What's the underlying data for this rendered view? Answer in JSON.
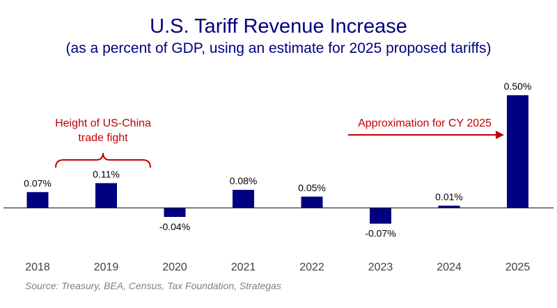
{
  "chart_data": {
    "type": "bar",
    "title": "U.S. Tariff Revenue Increase",
    "subtitle": "(as a percent of GDP, using an estimate for 2025 proposed tariffs)",
    "categories": [
      "2018",
      "2019",
      "2020",
      "2021",
      "2022",
      "2023",
      "2024",
      "2025"
    ],
    "values": [
      0.07,
      0.11,
      -0.04,
      0.08,
      0.05,
      -0.07,
      0.01,
      0.5
    ],
    "data_labels": [
      "0.07%",
      "0.11%",
      "-0.04%",
      "0.08%",
      "0.05%",
      "-0.07%",
      "0.01%",
      "0.50%"
    ],
    "ylim": [
      -0.12,
      0.55
    ],
    "xlabel": "",
    "ylabel": "",
    "grid": false,
    "annotations": {
      "china_line1": "Height of US-China",
      "china_line2": "trade fight",
      "approx": "Approximation for CY 2025"
    },
    "source": "Source: Treasury, BEA, Census, Tax Foundation, Strategas"
  },
  "colors": {
    "bar": "#000080",
    "title": "#000080",
    "annotation": "#c00000",
    "axis": "#000000"
  }
}
